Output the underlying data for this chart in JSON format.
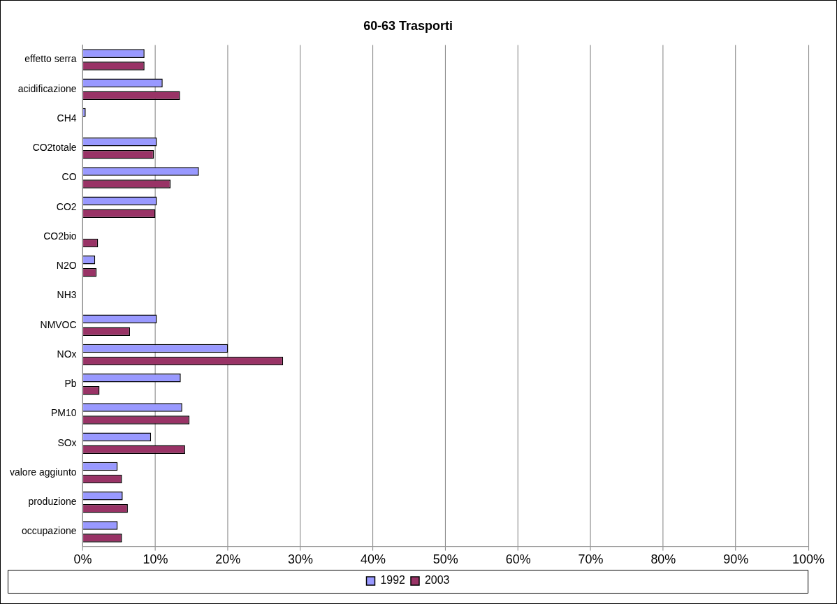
{
  "chart_data": {
    "type": "bar",
    "orientation": "horizontal",
    "title": "60-63 Trasporti",
    "categories": [
      "effetto serra",
      "acidificazione",
      "CH4",
      "CO2totale",
      "CO",
      "CO2",
      "CO2bio",
      "N2O",
      "NH3",
      "NMVOC",
      "NOx",
      "Pb",
      "PM10",
      "SOx",
      "valore aggiunto",
      "produzione",
      "occupazione"
    ],
    "series": [
      {
        "name": "1992",
        "color": "#9999ff",
        "values": [
          8.5,
          11.0,
          0.4,
          10.2,
          16.0,
          10.2,
          null,
          1.7,
          null,
          10.2,
          20.0,
          13.5,
          13.7,
          9.4,
          4.8,
          5.5,
          4.8
        ]
      },
      {
        "name": "2003",
        "color": "#993366",
        "values": [
          8.5,
          13.4,
          null,
          9.8,
          12.1,
          10.0,
          2.1,
          1.9,
          null,
          6.5,
          27.6,
          2.3,
          14.7,
          14.1,
          5.4,
          6.2,
          5.4
        ]
      }
    ],
    "xlim": [
      0,
      100
    ],
    "xticks": [
      {
        "value": 0,
        "label": "0%"
      },
      {
        "value": 10,
        "label": "10%"
      },
      {
        "value": 20,
        "label": "20%"
      },
      {
        "value": 30,
        "label": "30%"
      },
      {
        "value": 40,
        "label": "40%"
      },
      {
        "value": 50,
        "label": "50%"
      },
      {
        "value": 60,
        "label": "60%"
      },
      {
        "value": 70,
        "label": "70%"
      },
      {
        "value": 80,
        "label": "80%"
      },
      {
        "value": 90,
        "label": "90%"
      },
      {
        "value": 100,
        "label": "100%"
      }
    ],
    "grid": "x",
    "legend": "bottom"
  }
}
